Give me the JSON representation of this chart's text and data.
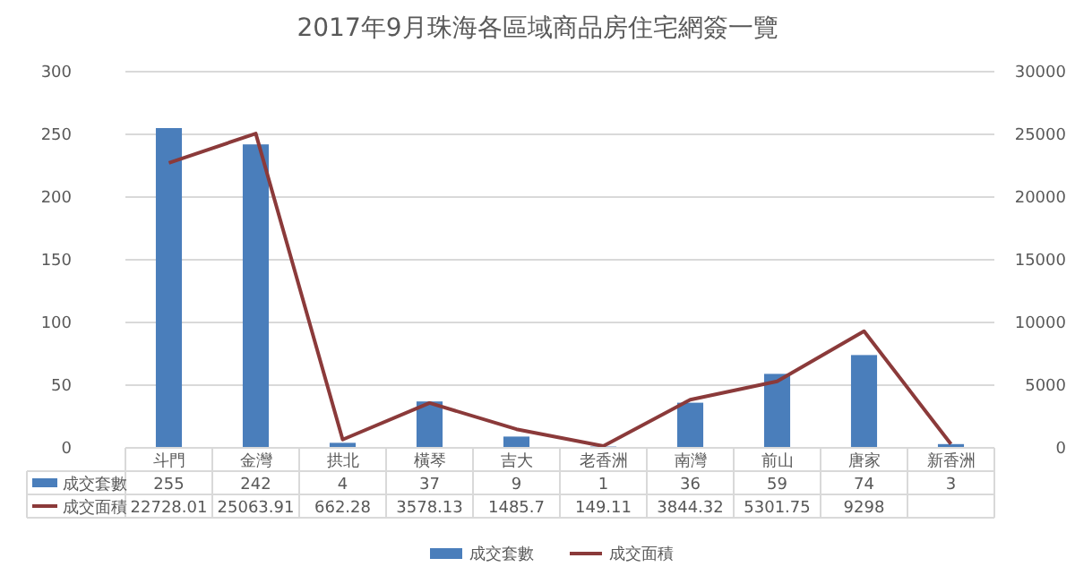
{
  "chart_data": {
    "type": "bar",
    "title": "2017年9月珠海各區域商品房住宅網簽一覽",
    "categories": [
      "斗門",
      "金灣",
      "拱北",
      "橫琴",
      "吉大",
      "老香洲",
      "南灣",
      "前山",
      "唐家",
      "新香洲"
    ],
    "series": [
      {
        "name": "成交套數",
        "color": "#4a7ebb",
        "values": [
          255,
          242,
          4,
          37,
          9,
          1,
          36,
          59,
          74,
          3
        ],
        "value_labels": [
          "255",
          "242",
          "4",
          "37",
          "9",
          "1",
          "36",
          "59",
          "74",
          "3"
        ]
      },
      {
        "name": "成交面積",
        "type": "line",
        "axis": "y2",
        "color": "#8b3a3a",
        "values": [
          22728.01,
          25063.91,
          662.28,
          3578.13,
          1485.7,
          149.11,
          3844.32,
          5301.75,
          9298,
          300
        ],
        "value_labels": [
          "22728.01",
          "25063.91",
          "662.28",
          "3578.13",
          "1485.7",
          "149.11",
          "3844.32",
          "5301.75",
          "9298",
          null
        ]
      }
    ],
    "ylim": [
      0,
      300
    ],
    "yticks": [
      0,
      50,
      100,
      150,
      200,
      250,
      300
    ],
    "y2lim": [
      0,
      30000
    ],
    "y2ticks": [
      0,
      5000,
      10000,
      15000,
      20000,
      25000,
      30000
    ],
    "grid": "y",
    "legend": "bottom",
    "marker": "none",
    "line_style": "solid"
  }
}
